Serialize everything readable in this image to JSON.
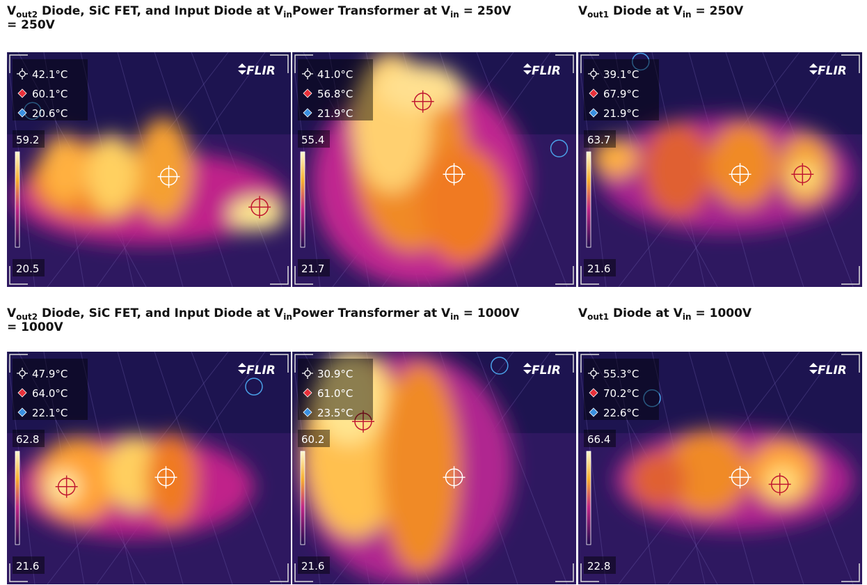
{
  "logo": "FLIR",
  "panels": [
    {
      "title": [
        "V",
        "out2",
        " Diode, SiC FET, and Input Diode at V",
        "in",
        " = 250V"
      ],
      "readings": [
        "42.1°C",
        "60.1°C",
        "20.6°C"
      ],
      "scale_max": "59.2",
      "scale_min": "20.5"
    },
    {
      "title": [
        "Power Transformer at V",
        "in",
        " = 250V"
      ],
      "readings": [
        "41.0°C",
        "56.8°C",
        "21.9°C"
      ],
      "scale_max": "55.4",
      "scale_min": "21.7"
    },
    {
      "title": [
        "V",
        "out1",
        " Diode at V",
        "in",
        " = 250V"
      ],
      "readings": [
        "39.1°C",
        "67.9°C",
        "21.9°C"
      ],
      "scale_max": "63.7",
      "scale_min": "21.6"
    },
    {
      "title": [
        "V",
        "out2",
        " Diode, SiC FET, and Input Diode at V",
        "in",
        " = 1000V"
      ],
      "readings": [
        "47.9°C",
        "64.0°C",
        "22.1°C"
      ],
      "scale_max": "62.8",
      "scale_min": "21.6"
    },
    {
      "title": [
        "Power Transformer at V",
        "in",
        " = 1000V"
      ],
      "readings": [
        "30.9°C",
        "61.0°C",
        "23.5°C"
      ],
      "scale_max": "60.2",
      "scale_min": "21.6"
    },
    {
      "title": [
        "V",
        "out1",
        " Diode at V",
        "in",
        " = 1000V"
      ],
      "readings": [
        "55.3°C",
        "70.2°C",
        "22.6°C"
      ],
      "scale_max": "66.4",
      "scale_min": "22.8"
    }
  ]
}
